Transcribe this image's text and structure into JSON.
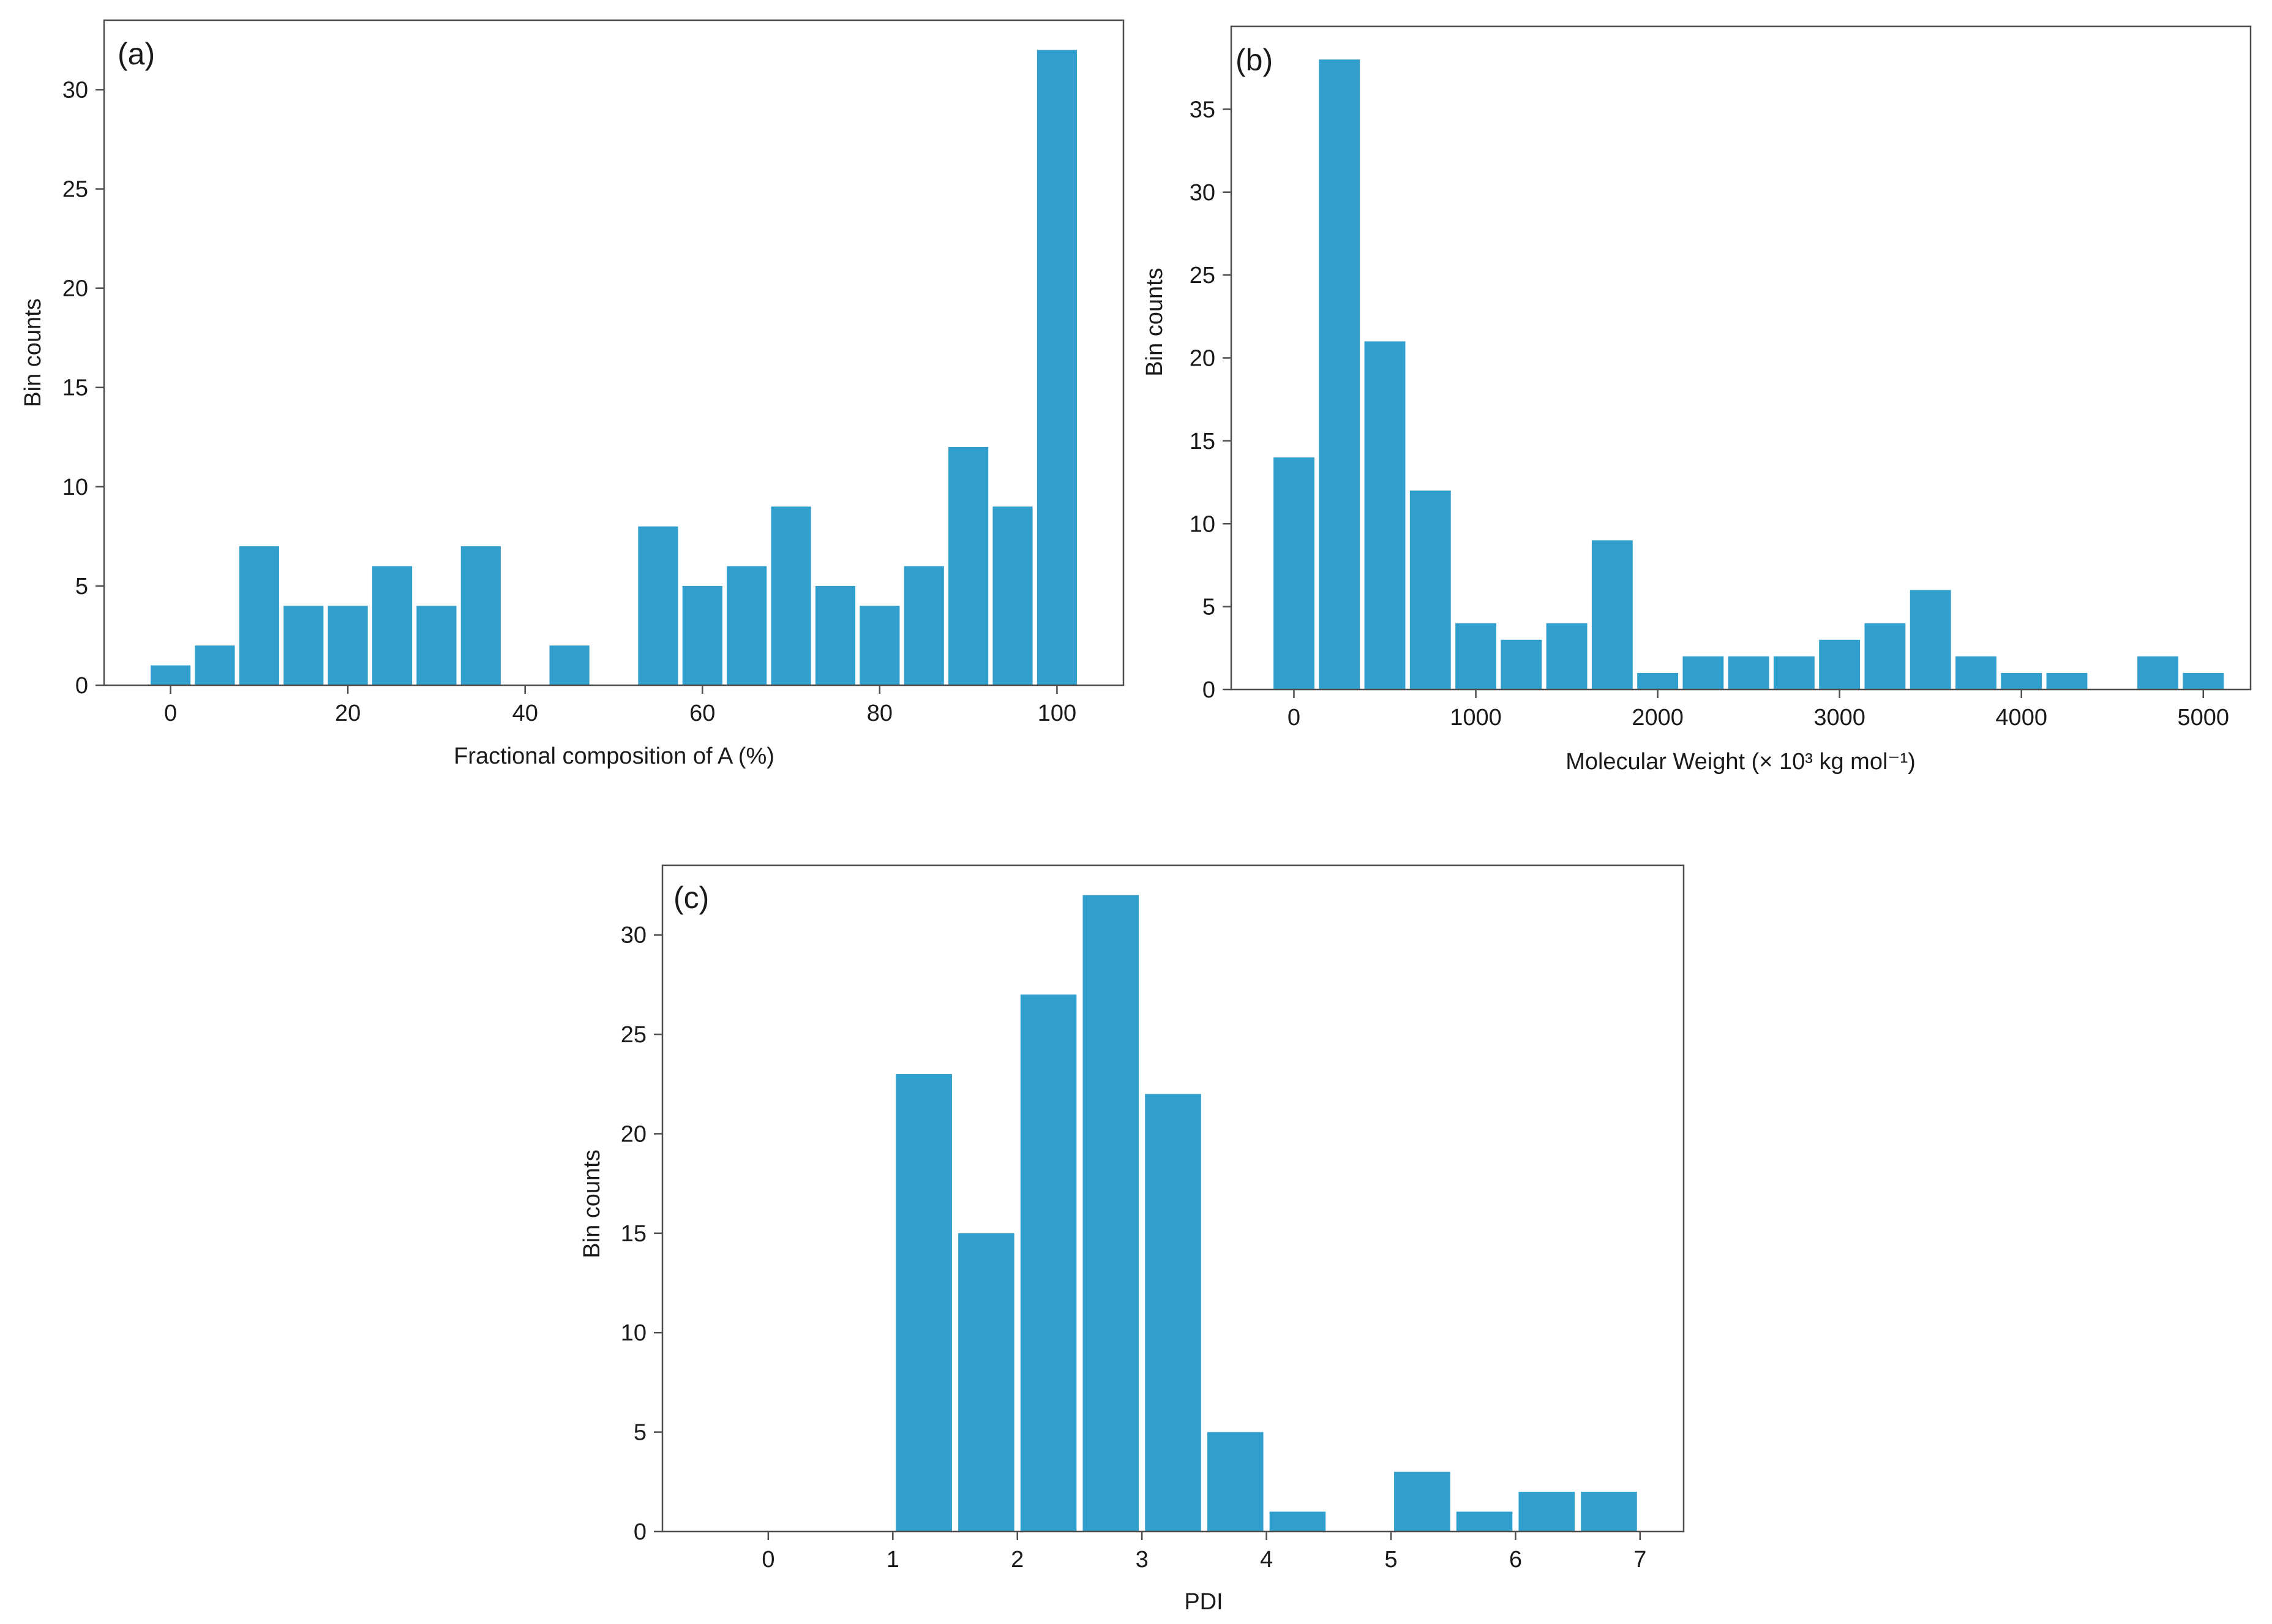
{
  "bar_color": "#319fcd",
  "chart_data": [
    {
      "type": "bar",
      "panel_label": "(a)",
      "xlabel": "Fractional composition of A (%)",
      "ylabel": "Bin counts",
      "xlim": [
        -7.5,
        107.5
      ],
      "ylim": [
        0,
        33.5
      ],
      "xticks": [
        0,
        20,
        40,
        60,
        80,
        100
      ],
      "yticks": [
        0,
        5,
        10,
        15,
        20,
        25,
        30
      ],
      "bin_width": 4.5,
      "x": [
        0,
        5,
        10,
        15,
        20,
        25,
        30,
        35,
        40,
        45,
        50,
        55,
        60,
        65,
        70,
        75,
        80,
        85,
        90,
        95,
        100
      ],
      "values": [
        1,
        2,
        7,
        4,
        4,
        6,
        4,
        7,
        0,
        2,
        0,
        8,
        5,
        6,
        9,
        5,
        4,
        6,
        12,
        9,
        32
      ]
    },
    {
      "type": "bar",
      "panel_label": "(b)",
      "xlabel": "Molecular Weight (× 10³ kg mol⁻¹)",
      "ylabel": "Bin counts",
      "xlim": [
        -345,
        5260
      ],
      "ylim": [
        0,
        40
      ],
      "xticks": [
        0,
        1000,
        2000,
        3000,
        4000,
        5000
      ],
      "yticks": [
        0,
        5,
        10,
        15,
        20,
        25,
        30,
        35
      ],
      "bin_width": 225,
      "x": [
        0,
        250,
        500,
        750,
        1000,
        1250,
        1500,
        1750,
        2000,
        2250,
        2500,
        2750,
        3000,
        3250,
        3500,
        3750,
        4000,
        4250,
        4500,
        4750,
        5000
      ],
      "values": [
        14,
        38,
        21,
        12,
        4,
        3,
        4,
        9,
        1,
        2,
        2,
        2,
        3,
        4,
        6,
        2,
        1,
        1,
        0,
        2,
        1
      ]
    },
    {
      "type": "bar",
      "panel_label": "(c)",
      "xlabel": "PDI",
      "ylabel": "Bin counts",
      "xlim": [
        -0.85,
        7.35
      ],
      "ylim": [
        0,
        33.5
      ],
      "xticks": [
        0,
        1,
        2,
        3,
        4,
        5,
        6,
        7
      ],
      "yticks": [
        0,
        5,
        10,
        15,
        20,
        25,
        30
      ],
      "bin_width": 0.45,
      "x": [
        0.25,
        0.75,
        1.25,
        1.75,
        2.25,
        2.75,
        3.25,
        3.75,
        4.25,
        4.75,
        5.25,
        5.75,
        6.25,
        6.75
      ],
      "values": [
        0,
        0,
        23,
        15,
        27,
        32,
        22,
        5,
        1,
        0,
        3,
        1,
        2,
        2
      ]
    }
  ]
}
